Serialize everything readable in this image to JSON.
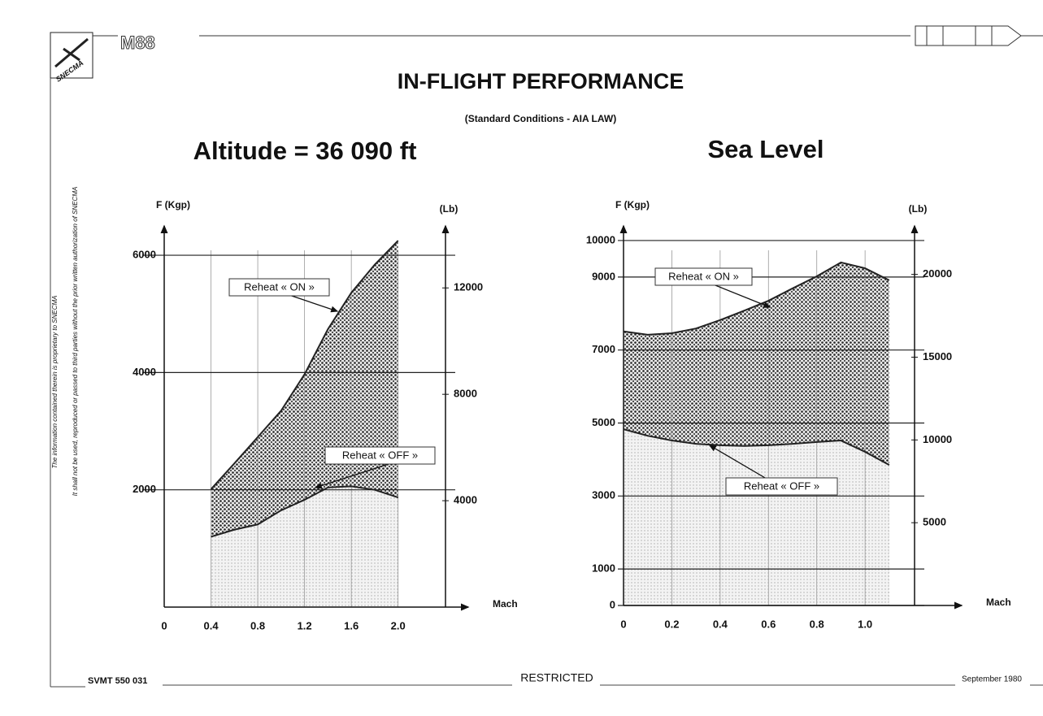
{
  "page": {
    "brand": "M88",
    "logo": "SNECMA",
    "title": "IN-FLIGHT PERFORMANCE",
    "subtitle": "(Standard Conditions - AIA LAW)",
    "side_note_1": "The information contained therein is proprietary to SNECMA",
    "side_note_2": "It shall not be used, reproduced or passed to third parties without the prior written authorization of SNECMA",
    "footer_left": "SVMT 550 031",
    "footer_center": "RESTRICTED",
    "footer_right": "September 1980"
  },
  "chart_data": [
    {
      "type": "area",
      "title": "Altitude = 36 090 ft",
      "y_label": "F (Kgp)",
      "y2_label": "(Lb)",
      "x_label": "Mach",
      "xlim": [
        0,
        2.6
      ],
      "xticks": [
        0,
        0.4,
        0.8,
        1.2,
        1.6,
        {
          "value": 2,
          "label": "2.0"
        }
      ],
      "ylim": [
        0,
        6500
      ],
      "yticks": [
        2000,
        4000,
        6000
      ],
      "y2lim": [
        0,
        14330
      ],
      "y2ticks": [
        4000,
        8000,
        12000
      ],
      "x": [
        0.4,
        0.6,
        0.8,
        1.0,
        1.2,
        1.4,
        1.6,
        1.8,
        2.0
      ],
      "series": [
        {
          "name": "Reheat « ON »",
          "color": "#222222",
          "values": [
            2010,
            2450,
            2900,
            3350,
            3970,
            4740,
            5360,
            5840,
            6250
          ]
        },
        {
          "name": "Reheat « OFF »",
          "color": "#222222",
          "values": [
            1200,
            1320,
            1410,
            1650,
            1830,
            2040,
            2060,
            2000,
            1870
          ]
        }
      ],
      "grid": true
    },
    {
      "type": "area",
      "title": "Sea Level",
      "y_label": "F (Kgp)",
      "y2_label": "(Lb)",
      "x_label": "Mach",
      "xlim": [
        0,
        1.4
      ],
      "xticks": [
        0,
        0.2,
        0.4,
        0.6,
        0.8,
        {
          "value": 1,
          "label": "1.0"
        }
      ],
      "ylim": [
        0,
        10400
      ],
      "yticks": [
        0,
        1000,
        3000,
        5000,
        7000,
        9000,
        10000
      ],
      "y2lim": [
        0,
        22928
      ],
      "y2ticks": [
        5000,
        10000,
        15000,
        20000
      ],
      "x": [
        0,
        0.1,
        0.2,
        0.3,
        0.4,
        0.5,
        0.6,
        0.7,
        0.8,
        0.9,
        1.0,
        1.1
      ],
      "series": [
        {
          "name": "Reheat « ON »",
          "color": "#222222",
          "values": [
            7510,
            7420,
            7460,
            7590,
            7820,
            8080,
            8350,
            8690,
            9020,
            9400,
            9240,
            8910
          ]
        },
        {
          "name": "Reheat « OFF »",
          "color": "#222222",
          "values": [
            4830,
            4650,
            4520,
            4430,
            4390,
            4370,
            4390,
            4430,
            4480,
            4520,
            4210,
            3850
          ]
        }
      ],
      "grid": true
    }
  ]
}
